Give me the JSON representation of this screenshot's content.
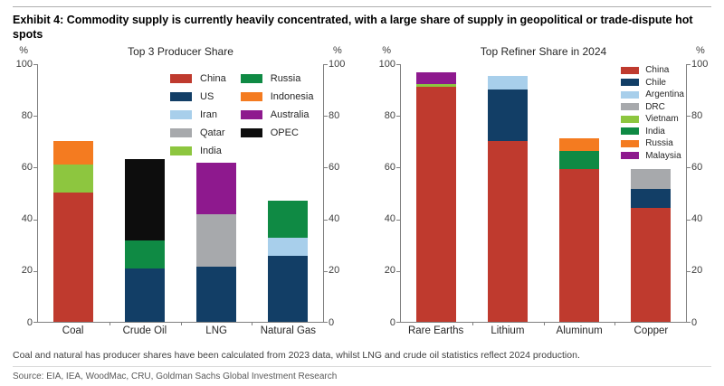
{
  "page": {
    "title": "Exhibit 4: Commodity supply is currently heavily concentrated, with a large share of supply in geopolitical or trade-dispute hot spots",
    "footnote": "Coal and natural has producer shares have been calculated from 2023 data, whilst LNG and crude oil statistics reflect 2024 production.",
    "source": "Source: EIA, IEA, WoodMac, CRU, Goldman Sachs Global Investment Research"
  },
  "chart_data": [
    {
      "type": "bar",
      "variant": "stacked",
      "title": "Top 3 Producer Share",
      "unit": "%",
      "ylim": [
        0,
        100
      ],
      "yticks": [
        0,
        20,
        40,
        60,
        80,
        100
      ],
      "grid": false,
      "legend_position": "inside-top-center",
      "legend_columns": [
        [
          "China",
          "US",
          "Iran",
          "Qatar",
          "India"
        ],
        [
          "Russia",
          "Indonesia",
          "Australia",
          "OPEC"
        ]
      ],
      "colors": {
        "China": "#bf3a2e",
        "US": "#123e66",
        "Iran": "#a8cfeb",
        "Qatar": "#a7a9ac",
        "India": "#8dc63f",
        "Russia": "#0f8a44",
        "Indonesia": "#f47b20",
        "Australia": "#8e198e",
        "OPEC": "#0d0d0d"
      },
      "categories": [
        "Coal",
        "Crude Oil",
        "LNG",
        "Natural Gas"
      ],
      "bars": [
        {
          "category": "Coal",
          "segments": [
            {
              "name": "China",
              "value": 50
            },
            {
              "name": "India",
              "value": 11
            },
            {
              "name": "Indonesia",
              "value": 9
            }
          ]
        },
        {
          "category": "Crude Oil",
          "segments": [
            {
              "name": "US",
              "value": 20.5
            },
            {
              "name": "Russia",
              "value": 11
            },
            {
              "name": "OPEC",
              "value": 31.5
            }
          ]
        },
        {
          "category": "LNG",
          "segments": [
            {
              "name": "US",
              "value": 21.5
            },
            {
              "name": "Qatar",
              "value": 20
            },
            {
              "name": "Australia",
              "value": 20
            }
          ]
        },
        {
          "category": "Natural Gas",
          "segments": [
            {
              "name": "US",
              "value": 25.5
            },
            {
              "name": "Iran",
              "value": 7
            },
            {
              "name": "Russia",
              "value": 14.5
            }
          ]
        }
      ]
    },
    {
      "type": "bar",
      "variant": "stacked",
      "title": "Top Refiner Share in 2024",
      "unit": "%",
      "ylim": [
        0,
        100
      ],
      "yticks": [
        0,
        20,
        40,
        60,
        80,
        100
      ],
      "grid": false,
      "legend_position": "inside-top-right",
      "legend_columns": [
        [
          "China",
          "Chile",
          "Argentina",
          "DRC",
          "Vietnam",
          "India",
          "Russia",
          "Malaysia"
        ]
      ],
      "colors": {
        "China": "#bf3a2e",
        "Chile": "#123e66",
        "Argentina": "#a8cfeb",
        "DRC": "#a7a9ac",
        "Vietnam": "#8dc63f",
        "India": "#0f8a44",
        "Russia": "#f47b20",
        "Malaysia": "#8e198e"
      },
      "categories": [
        "Rare Earths",
        "Lithium",
        "Aluminum",
        "Copper"
      ],
      "bars": [
        {
          "category": "Rare Earths",
          "segments": [
            {
              "name": "China",
              "value": 91
            },
            {
              "name": "Vietnam",
              "value": 1
            },
            {
              "name": "Malaysia",
              "value": 4.5
            }
          ]
        },
        {
          "category": "Lithium",
          "segments": [
            {
              "name": "China",
              "value": 70
            },
            {
              "name": "Chile",
              "value": 20
            },
            {
              "name": "Argentina",
              "value": 5
            }
          ]
        },
        {
          "category": "Aluminum",
          "segments": [
            {
              "name": "China",
              "value": 59
            },
            {
              "name": "India",
              "value": 7
            },
            {
              "name": "Russia",
              "value": 5
            }
          ]
        },
        {
          "category": "Copper",
          "segments": [
            {
              "name": "China",
              "value": 44
            },
            {
              "name": "Chile",
              "value": 7.5
            },
            {
              "name": "DRC",
              "value": 7.5
            }
          ]
        }
      ]
    }
  ]
}
